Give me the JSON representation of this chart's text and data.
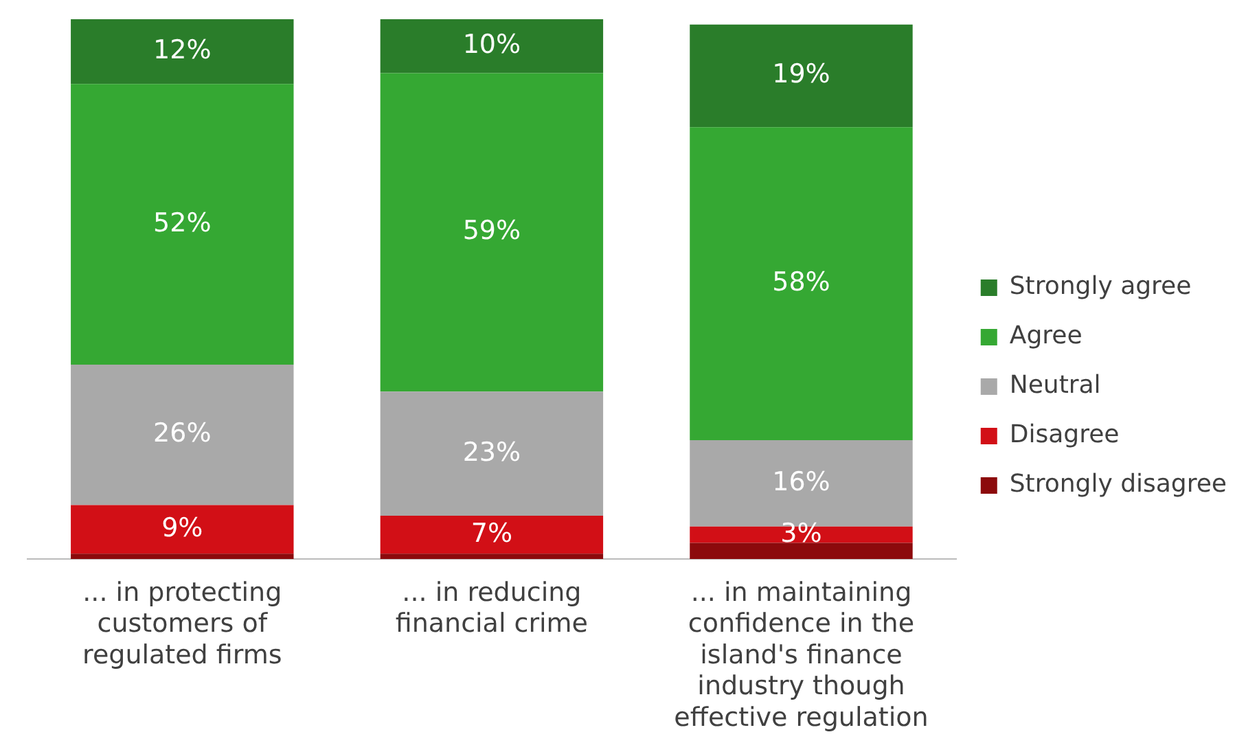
{
  "chart_data": {
    "type": "bar",
    "stacked": true,
    "legend": "right",
    "data_labels": false,
    "tick_labels": "x",
    "grid": false,
    "ylim": [
      0,
      100
    ],
    "categories": [
      "... in protecting customers of regulated firms",
      "... in reducing financial crime",
      "... in maintaining confidence in the island's finance industry though effective regulation"
    ],
    "series": [
      {
        "name": "Strongly disagree",
        "color": "#8c0a0c",
        "values": [
          1,
          1,
          3
        ],
        "value_labels": [
          null,
          null,
          null
        ]
      },
      {
        "name": "Disagree",
        "color": "#d20f16",
        "values": [
          9,
          7,
          3
        ],
        "value_labels": [
          "9%",
          "7%",
          "3%"
        ]
      },
      {
        "name": "Neutral",
        "color": "#a9a9a9",
        "values": [
          26,
          23,
          16
        ],
        "value_labels": [
          "26%",
          "23%",
          "16%"
        ]
      },
      {
        "name": "Agree",
        "color": "#35a833",
        "values": [
          52,
          59,
          58
        ],
        "value_labels": [
          "52%",
          "59%",
          "58%"
        ]
      },
      {
        "name": "Strongly agree",
        "color": "#2a7d2a",
        "values": [
          12,
          10,
          19
        ],
        "value_labels": [
          "12%",
          "10%",
          "19%"
        ]
      }
    ]
  }
}
